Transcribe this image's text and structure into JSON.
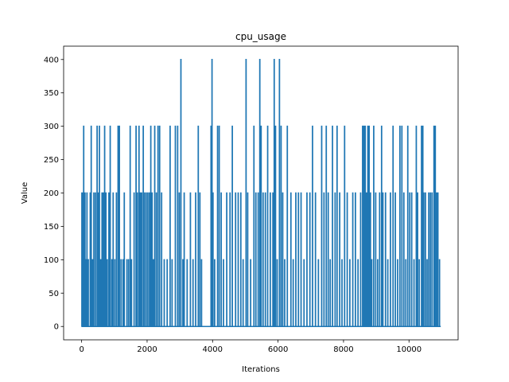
{
  "chart_data": {
    "type": "line",
    "title": "cpu_usage",
    "xlabel": "Iterations",
    "ylabel": "Value",
    "xlim": [
      -550,
      11500
    ],
    "ylim": [
      -20,
      420
    ],
    "x_ticks": [
      0,
      2000,
      4000,
      6000,
      8000,
      10000
    ],
    "y_ticks": [
      0,
      50,
      100,
      150,
      200,
      250,
      300,
      350,
      400
    ],
    "grid": false,
    "legend": "none",
    "line_color": "#1f77b4",
    "series": [
      {
        "x_range": [
          0,
          10970
        ],
        "spikes": [
          [
            5,
            200
          ],
          [
            20,
            100
          ],
          [
            40,
            200
          ],
          [
            60,
            300
          ],
          [
            80,
            200
          ],
          [
            100,
            200
          ],
          [
            130,
            100
          ],
          [
            160,
            200
          ],
          [
            200,
            100
          ],
          [
            260,
            200
          ],
          [
            290,
            300
          ],
          [
            330,
            100
          ],
          [
            370,
            200
          ],
          [
            420,
            200
          ],
          [
            470,
            300
          ],
          [
            510,
            200
          ],
          [
            540,
            300
          ],
          [
            580,
            100
          ],
          [
            620,
            200
          ],
          [
            660,
            200
          ],
          [
            700,
            300
          ],
          [
            740,
            200
          ],
          [
            780,
            100
          ],
          [
            830,
            200
          ],
          [
            870,
            300
          ],
          [
            920,
            100
          ],
          [
            960,
            200
          ],
          [
            1010,
            100
          ],
          [
            1060,
            200
          ],
          [
            1110,
            300
          ],
          [
            1150,
            300
          ],
          [
            1200,
            100
          ],
          [
            1260,
            100
          ],
          [
            1300,
            200
          ],
          [
            1380,
            100
          ],
          [
            1430,
            100
          ],
          [
            1480,
            300
          ],
          [
            1520,
            100
          ],
          [
            1600,
            200
          ],
          [
            1660,
            300
          ],
          [
            1700,
            200
          ],
          [
            1750,
            300
          ],
          [
            1790,
            200
          ],
          [
            1830,
            200
          ],
          [
            1880,
            300
          ],
          [
            1920,
            200
          ],
          [
            1970,
            200
          ],
          [
            2020,
            200
          ],
          [
            2070,
            200
          ],
          [
            2110,
            300
          ],
          [
            2150,
            200
          ],
          [
            2190,
            100
          ],
          [
            2230,
            300
          ],
          [
            2280,
            200
          ],
          [
            2330,
            300
          ],
          [
            2380,
            300
          ],
          [
            2440,
            200
          ],
          [
            2520,
            100
          ],
          [
            2610,
            100
          ],
          [
            2700,
            300
          ],
          [
            2760,
            100
          ],
          [
            2860,
            300
          ],
          [
            2930,
            300
          ],
          [
            2980,
            200
          ],
          [
            3030,
            400
          ],
          [
            3090,
            100
          ],
          [
            3130,
            200
          ],
          [
            3220,
            100
          ],
          [
            3320,
            200
          ],
          [
            3400,
            100
          ],
          [
            3480,
            200
          ],
          [
            3560,
            300
          ],
          [
            3610,
            200
          ],
          [
            3660,
            100
          ],
          [
            3950,
            300
          ],
          [
            3980,
            400
          ],
          [
            4010,
            200
          ],
          [
            4060,
            100
          ],
          [
            4150,
            300
          ],
          [
            4200,
            300
          ],
          [
            4260,
            200
          ],
          [
            4330,
            100
          ],
          [
            4430,
            200
          ],
          [
            4530,
            200
          ],
          [
            4600,
            300
          ],
          [
            4700,
            200
          ],
          [
            4780,
            200
          ],
          [
            4860,
            200
          ],
          [
            4930,
            100
          ],
          [
            5020,
            400
          ],
          [
            5070,
            200
          ],
          [
            5160,
            100
          ],
          [
            5260,
            300
          ],
          [
            5320,
            200
          ],
          [
            5390,
            200
          ],
          [
            5440,
            400
          ],
          [
            5480,
            300
          ],
          [
            5540,
            200
          ],
          [
            5610,
            200
          ],
          [
            5680,
            300
          ],
          [
            5760,
            200
          ],
          [
            5840,
            200
          ],
          [
            5880,
            400
          ],
          [
            5920,
            300
          ],
          [
            5970,
            100
          ],
          [
            6040,
            400
          ],
          [
            6090,
            300
          ],
          [
            6140,
            200
          ],
          [
            6200,
            100
          ],
          [
            6280,
            300
          ],
          [
            6390,
            200
          ],
          [
            6460,
            100
          ],
          [
            6540,
            200
          ],
          [
            6620,
            200
          ],
          [
            6700,
            200
          ],
          [
            6790,
            100
          ],
          [
            6880,
            200
          ],
          [
            6970,
            200
          ],
          [
            7050,
            300
          ],
          [
            7140,
            200
          ],
          [
            7230,
            100
          ],
          [
            7330,
            300
          ],
          [
            7400,
            200
          ],
          [
            7470,
            300
          ],
          [
            7530,
            200
          ],
          [
            7590,
            100
          ],
          [
            7660,
            300
          ],
          [
            7740,
            200
          ],
          [
            7800,
            300
          ],
          [
            7880,
            200
          ],
          [
            7950,
            100
          ],
          [
            8030,
            300
          ],
          [
            8110,
            200
          ],
          [
            8190,
            100
          ],
          [
            8280,
            200
          ],
          [
            8360,
            200
          ],
          [
            8440,
            100
          ],
          [
            8520,
            200
          ],
          [
            8580,
            300
          ],
          [
            8620,
            300
          ],
          [
            8660,
            300
          ],
          [
            8700,
            200
          ],
          [
            8740,
            300
          ],
          [
            8780,
            300
          ],
          [
            8820,
            200
          ],
          [
            8860,
            100
          ],
          [
            8920,
            300
          ],
          [
            8980,
            200
          ],
          [
            9040,
            100
          ],
          [
            9100,
            200
          ],
          [
            9160,
            300
          ],
          [
            9200,
            200
          ],
          [
            9280,
            200
          ],
          [
            9350,
            100
          ],
          [
            9430,
            200
          ],
          [
            9510,
            300
          ],
          [
            9580,
            200
          ],
          [
            9650,
            100
          ],
          [
            9720,
            300
          ],
          [
            9780,
            300
          ],
          [
            9840,
            200
          ],
          [
            9900,
            100
          ],
          [
            9960,
            300
          ],
          [
            10020,
            200
          ],
          [
            10080,
            200
          ],
          [
            10150,
            100
          ],
          [
            10220,
            300
          ],
          [
            10260,
            200
          ],
          [
            10310,
            100
          ],
          [
            10380,
            300
          ],
          [
            10420,
            300
          ],
          [
            10450,
            200
          ],
          [
            10500,
            200
          ],
          [
            10550,
            100
          ],
          [
            10600,
            200
          ],
          [
            10650,
            200
          ],
          [
            10700,
            200
          ],
          [
            10760,
            300
          ],
          [
            10800,
            300
          ],
          [
            10840,
            200
          ],
          [
            10880,
            200
          ],
          [
            10930,
            100
          ]
        ]
      }
    ]
  }
}
